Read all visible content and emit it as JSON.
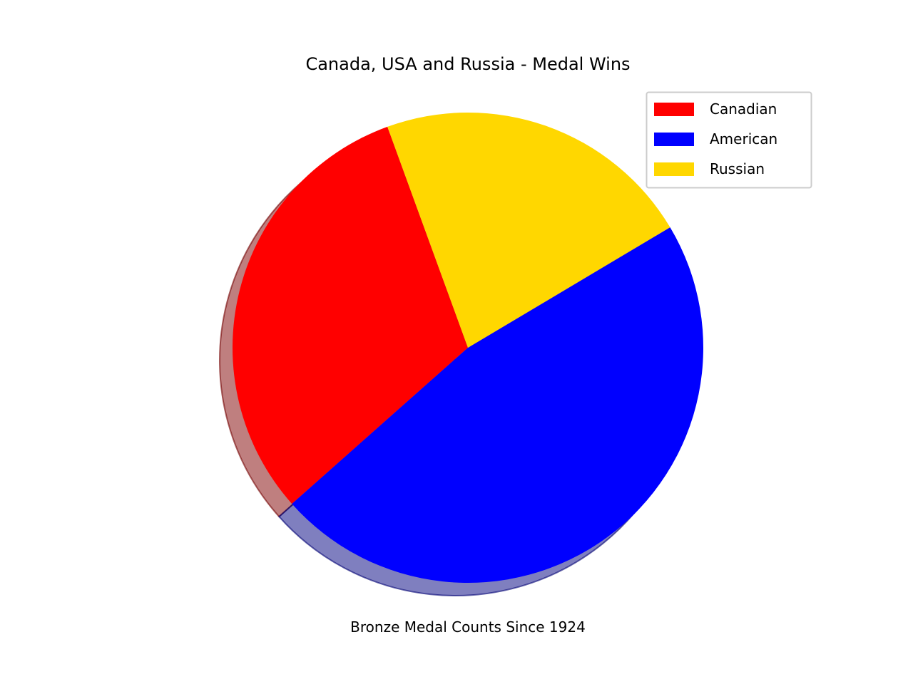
{
  "chart_data": {
    "type": "pie",
    "title": "Canada, USA and Russia - Medal Wins",
    "xlabel": "Bronze Medal Counts Since 1924",
    "start_angle_deg": 110,
    "counterclockwise": true,
    "shadow": true,
    "legend_position": "upper-right",
    "slices": [
      {
        "label": "Canadian",
        "value": 31,
        "color": "#ff0000"
      },
      {
        "label": "American",
        "value": 47,
        "color": "#0000ff"
      },
      {
        "label": "Russian",
        "value": 22,
        "color": "#ffd700"
      }
    ]
  }
}
